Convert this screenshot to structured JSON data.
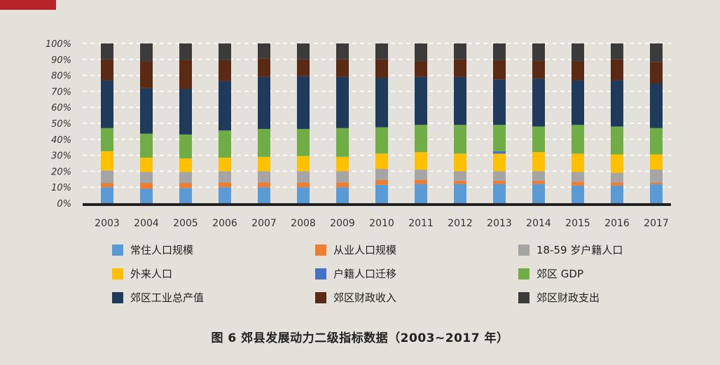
{
  "chart_data": {
    "type": "bar",
    "stacked": true,
    "title": "图 6  郊县发展动力二级指标数据（2003~2017 年）",
    "xlabel": "",
    "ylabel": "",
    "ylim": [
      0,
      100
    ],
    "y_ticks": [
      "0%",
      "10%",
      "20%",
      "30%",
      "40%",
      "50%",
      "60%",
      "70%",
      "80%",
      "90%",
      "100%"
    ],
    "categories": [
      "2003",
      "2004",
      "2005",
      "2006",
      "2007",
      "2008",
      "2009",
      "2010",
      "2011",
      "2012",
      "2013",
      "2014",
      "2015",
      "2016",
      "2017"
    ],
    "legend_position": "bottom",
    "series": [
      {
        "name": "常住人口规模",
        "color": "#5b9bd5",
        "values": [
          10,
          9,
          9.5,
          10,
          10,
          10,
          10,
          11.5,
          12,
          12,
          12,
          12,
          11,
          11,
          12
        ]
      },
      {
        "name": "从业人口规模",
        "color": "#ed7d31",
        "values": [
          2.5,
          3.5,
          3,
          3,
          3,
          3,
          3,
          3,
          2.5,
          2,
          2,
          2,
          2.5,
          2,
          1
        ]
      },
      {
        "name": "18-59 岁户籍人口",
        "color": "#a5a5a5",
        "values": [
          8,
          7,
          7,
          7,
          7,
          7,
          7,
          7,
          6.5,
          6,
          6,
          6,
          6,
          6,
          8
        ]
      },
      {
        "name": "外来人口",
        "color": "#ffc000",
        "values": [
          12,
          9,
          8.5,
          8.5,
          9,
          9.5,
          9,
          9.5,
          11,
          11,
          11,
          12,
          11.5,
          11.5,
          9.5
        ]
      },
      {
        "name": "户籍人口迁移",
        "color": "#4472c4",
        "values": [
          0,
          0,
          0,
          0,
          0,
          0,
          0,
          0,
          0,
          0,
          1.5,
          0,
          0,
          0,
          0
        ]
      },
      {
        "name": "郊区 GDP",
        "color": "#70ad47",
        "values": [
          14.5,
          15,
          15,
          17,
          17.5,
          17,
          18,
          16.5,
          17,
          18,
          16.5,
          16,
          18,
          17.5,
          16.5
        ]
      },
      {
        "name": "郊区工业总产值",
        "color": "#1f3a5a",
        "values": [
          30,
          28.5,
          28.5,
          31,
          32.5,
          33,
          32,
          31,
          30,
          30,
          28.5,
          30,
          28,
          29,
          28
        ]
      },
      {
        "name": "郊区财政收入",
        "color": "#5a2a14",
        "values": [
          13,
          17,
          18,
          13,
          11.5,
          10.5,
          11,
          11.5,
          10,
          11,
          12,
          11,
          12,
          13,
          13.5
        ]
      },
      {
        "name": "郊区财政支出",
        "color": "#3b3b3b",
        "values": [
          10,
          11,
          10.5,
          10.5,
          9.5,
          10,
          10,
          10,
          11,
          10,
          10.5,
          11,
          11,
          10,
          11.5
        ]
      }
    ]
  }
}
